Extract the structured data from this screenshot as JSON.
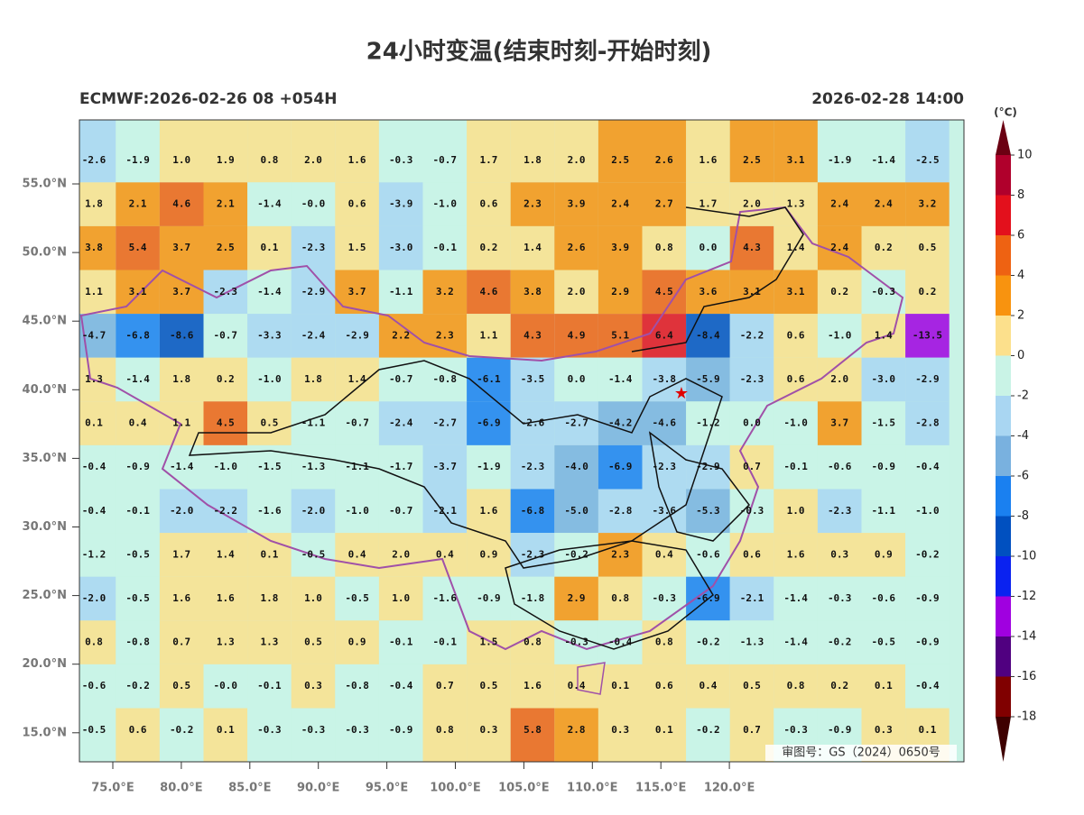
{
  "map": {
    "title": "24小时变温(结束时刻-开始时刻)",
    "left_label": "ECMWF:2026-02-26 08 +054H",
    "right_label": "2026-02-28 14:00",
    "approval": "审图号：GS（2024）0650号",
    "lat_labels": [
      "55.0°N",
      "50.0°N",
      "45.0°N",
      "40.0°N",
      "35.0°N",
      "30.0°N",
      "25.0°N",
      "20.0°N",
      "15.0°N"
    ],
    "lon_labels": [
      "75.0°E",
      "80.0°E",
      "85.0°E",
      "90.0°E",
      "95.0°E",
      "100.0°E",
      "105.0°E",
      "110.0°E",
      "115.0°E",
      "120.0°E"
    ],
    "grid_values": [
      [
        "-2.6",
        "-1.9",
        "1.0",
        "1.9",
        "0.8",
        "2.0",
        "1.6",
        "-0.3",
        "-0.7",
        "1.7",
        "1.8",
        "2.0",
        "2.5",
        "2.6",
        "1.6",
        "2.5",
        "3.1",
        "-1.9",
        "-1.4",
        "-2.5"
      ],
      [
        "1.8",
        "2.1",
        "4.6",
        "2.1",
        "-1.4",
        "-0.0",
        "0.6",
        "-3.9",
        "-1.0",
        "0.6",
        "2.3",
        "3.9",
        "2.4",
        "2.7",
        "1.7",
        "2.0",
        "1.3",
        "2.4",
        "2.4",
        "3.2"
      ],
      [
        "3.8",
        "5.4",
        "3.7",
        "2.5",
        "0.1",
        "-2.3",
        "1.5",
        "-3.0",
        "-0.1",
        "0.2",
        "1.4",
        "2.6",
        "3.9",
        "0.8",
        "0.0",
        "4.3",
        "1.4",
        "2.4",
        "0.2",
        "0.5"
      ],
      [
        "1.1",
        "3.1",
        "3.7",
        "-2.3",
        "-1.4",
        "-2.9",
        "3.7",
        "-1.1",
        "3.2",
        "4.6",
        "3.8",
        "2.0",
        "2.9",
        "4.5",
        "3.6",
        "3.1",
        "3.1",
        "0.2",
        "-0.3",
        "0.2"
      ],
      [
        "-4.7",
        "-6.8",
        "-8.6",
        "-0.7",
        "-3.3",
        "-2.4",
        "-2.9",
        "2.2",
        "2.3",
        "1.1",
        "4.3",
        "4.9",
        "5.1",
        "6.4",
        "-8.4",
        "-2.2",
        "0.6",
        "-1.0",
        "1.4",
        "-13.5"
      ],
      [
        "1.3",
        "-1.4",
        "1.8",
        "0.2",
        "-1.0",
        "1.8",
        "1.4",
        "-0.7",
        "-0.8",
        "-6.1",
        "-3.5",
        "0.0",
        "-1.4",
        "-3.8",
        "-5.9",
        "-2.3",
        "0.6",
        "2.0",
        "-3.0",
        "-2.9"
      ],
      [
        "0.1",
        "0.4",
        "1.1",
        "4.5",
        "0.5",
        "-1.1",
        "-0.7",
        "-2.4",
        "-2.7",
        "-6.9",
        "-2.6",
        "-2.7",
        "-4.2",
        "-4.6",
        "-1.2",
        "0.0",
        "-1.0",
        "3.7",
        "-1.5",
        "-2.8"
      ],
      [
        "-0.4",
        "-0.9",
        "-1.4",
        "-1.0",
        "-1.5",
        "-1.3",
        "-1.1",
        "-1.7",
        "-3.7",
        "-1.9",
        "-2.3",
        "-4.0",
        "-6.9",
        "-2.3",
        "-2.9",
        "0.7",
        "-0.1",
        "-0.6",
        "-0.9",
        "-0.4"
      ],
      [
        "-0.4",
        "-0.1",
        "-2.0",
        "-2.2",
        "-1.6",
        "-2.0",
        "-1.0",
        "-0.7",
        "-2.1",
        "1.6",
        "-6.8",
        "-5.0",
        "-2.8",
        "-3.6",
        "-5.3",
        "-0.3",
        "1.0",
        "-2.3",
        "-1.1",
        "-1.0"
      ],
      [
        "-1.2",
        "-0.5",
        "1.7",
        "1.4",
        "0.1",
        "-0.5",
        "0.4",
        "2.0",
        "0.4",
        "0.9",
        "-2.3",
        "-0.2",
        "2.3",
        "0.4",
        "-0.6",
        "0.6",
        "1.6",
        "0.3",
        "0.9",
        "-0.2"
      ],
      [
        "-2.0",
        "-0.5",
        "1.6",
        "1.6",
        "1.8",
        "1.0",
        "-0.5",
        "1.0",
        "-1.6",
        "-0.9",
        "-1.8",
        "2.9",
        "0.8",
        "-0.3",
        "-6.9",
        "-2.1",
        "-1.4",
        "-0.3",
        "-0.6",
        "-0.9"
      ],
      [
        "0.8",
        "-0.8",
        "0.7",
        "1.3",
        "1.3",
        "0.5",
        "0.9",
        "-0.1",
        "-0.1",
        "1.5",
        "0.8",
        "-0.3",
        "-0.4",
        "0.8",
        "-0.2",
        "-1.3",
        "-1.4",
        "-0.2",
        "-0.5",
        "-0.9"
      ],
      [
        "-0.6",
        "-0.2",
        "0.5",
        "-0.0",
        "-0.1",
        "0.3",
        "-0.8",
        "-0.4",
        "0.7",
        "0.5",
        "1.6",
        "0.4",
        "0.1",
        "0.6",
        "0.4",
        "0.5",
        "0.8",
        "0.2",
        "0.1",
        "-0.4"
      ],
      [
        "-0.5",
        "0.6",
        "-0.2",
        "0.1",
        "-0.3",
        "-0.3",
        "-0.3",
        "-0.9",
        "0.8",
        "0.3",
        "5.8",
        "2.8",
        "0.3",
        "0.1",
        "-0.2",
        "0.7",
        "-0.3",
        "-0.9",
        "0.3",
        "0.1"
      ]
    ],
    "colorbar": {
      "unit": "(°C)",
      "levels": [
        10,
        8,
        6,
        4,
        2,
        0,
        -2,
        -4,
        -6,
        -8,
        -10,
        -12,
        -14,
        -16,
        -18
      ],
      "colors": [
        "#b0002c",
        "#e3101c",
        "#ee6212",
        "#f8930f",
        "#fce08c",
        "#c9f3e6",
        "#a9d6f2",
        "#79b1df",
        "#1a80f0",
        "#0050c0",
        "#0a22f0",
        "#a000e0",
        "#500080",
        "#800000"
      ],
      "over_color": "#6b0012",
      "under_color": "#3e0000"
    }
  }
}
